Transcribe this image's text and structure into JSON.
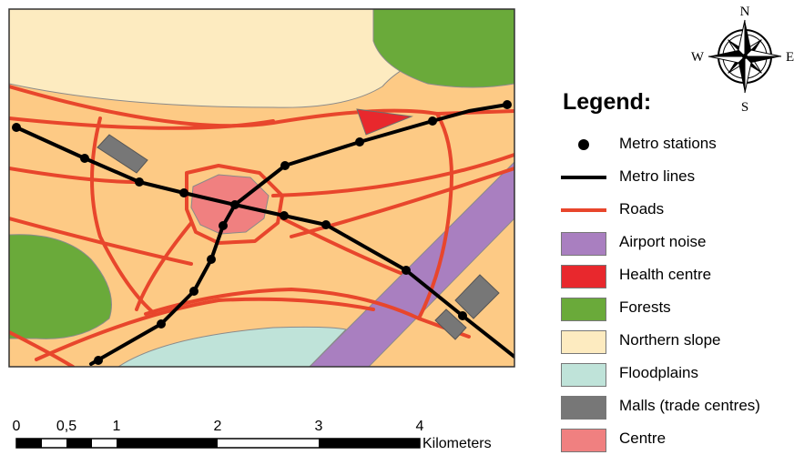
{
  "compass": {
    "n": "N",
    "s": "S",
    "e": "E",
    "w": "W"
  },
  "legend": {
    "title": "Legend:",
    "items": [
      {
        "id": "metro-stations",
        "label": "Metro stations",
        "kind": "dot"
      },
      {
        "id": "metro-lines",
        "label": "Metro lines",
        "kind": "line"
      },
      {
        "id": "roads",
        "label": "Roads",
        "kind": "road"
      },
      {
        "id": "airport-noise",
        "label": "Airport noise",
        "kind": "box",
        "color": "#a97fc0"
      },
      {
        "id": "health-centre",
        "label": "Health centre",
        "kind": "box",
        "color": "#e8282d"
      },
      {
        "id": "forests",
        "label": "Forests",
        "kind": "box",
        "color": "#6aaa3a"
      },
      {
        "id": "northern-slope",
        "label": "Northern slope",
        "kind": "box",
        "color": "#fdebc0"
      },
      {
        "id": "floodplains",
        "label": "Floodplains",
        "kind": "box",
        "color": "#bfe3d9"
      },
      {
        "id": "malls",
        "label": "Malls (trade centres)",
        "kind": "box",
        "color": "#777777"
      },
      {
        "id": "centre",
        "label": "Centre",
        "kind": "box",
        "color": "#f08080"
      }
    ]
  },
  "scale_bar": {
    "ticks": [
      "0",
      "0,5",
      "1",
      "2",
      "3",
      "4"
    ],
    "unit": "Kilometers"
  },
  "colors": {
    "urban": "#fdca85",
    "road": "#e8462c",
    "metro": "#000000"
  }
}
